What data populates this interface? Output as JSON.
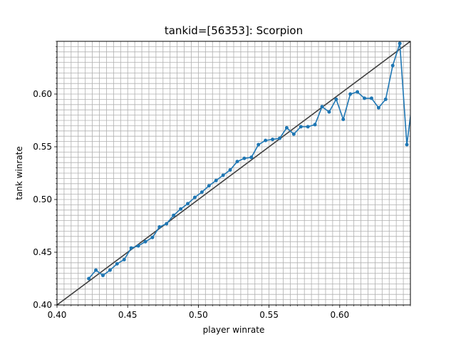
{
  "chart_data": {
    "type": "line",
    "title": "tankid=[56353]: Scorpion",
    "xlabel": "player winrate",
    "ylabel": "tank winrate",
    "xlim": [
      0.4,
      0.65
    ],
    "ylim": [
      0.4,
      0.65
    ],
    "x_ticks": [
      "0.40",
      "0.45",
      "0.50",
      "0.55",
      "0.60"
    ],
    "y_ticks": [
      "0.40",
      "0.45",
      "0.50",
      "0.55",
      "0.60"
    ],
    "grid": true,
    "minor_grid_step": 0.005,
    "colors": {
      "series": "#1f77b4",
      "reference": "#404040",
      "grid": "#b0b0b0"
    },
    "reference_line": {
      "from": [
        0.4,
        0.4
      ],
      "to": [
        0.65,
        0.65
      ]
    },
    "series": [
      {
        "x": [
          0.4225,
          0.4275,
          0.4325,
          0.4375,
          0.4425,
          0.4475,
          0.4525,
          0.4575,
          0.4625,
          0.4675,
          0.4725,
          0.4775,
          0.4825,
          0.4875,
          0.4925,
          0.4975,
          0.5025,
          0.5075,
          0.5125,
          0.5175,
          0.5225,
          0.5275,
          0.5325,
          0.5375,
          0.5425,
          0.5475,
          0.5525,
          0.5575,
          0.5625,
          0.5675,
          0.5725,
          0.5775,
          0.5825,
          0.5875,
          0.5925,
          0.5975,
          0.6025,
          0.6075,
          0.6125,
          0.6175,
          0.6225,
          0.6275,
          0.6325,
          0.6375,
          0.6425,
          0.6475,
          0.652
        ],
        "y": [
          0.425,
          0.433,
          0.428,
          0.433,
          0.439,
          0.443,
          0.454,
          0.456,
          0.46,
          0.464,
          0.474,
          0.477,
          0.485,
          0.491,
          0.496,
          0.502,
          0.507,
          0.513,
          0.518,
          0.523,
          0.528,
          0.536,
          0.539,
          0.54,
          0.552,
          0.556,
          0.557,
          0.558,
          0.568,
          0.562,
          0.569,
          0.569,
          0.571,
          0.588,
          0.583,
          0.595,
          0.576,
          0.6,
          0.602,
          0.596,
          0.596,
          0.587,
          0.595,
          0.627,
          0.648,
          0.552,
          0.6
        ]
      }
    ]
  }
}
